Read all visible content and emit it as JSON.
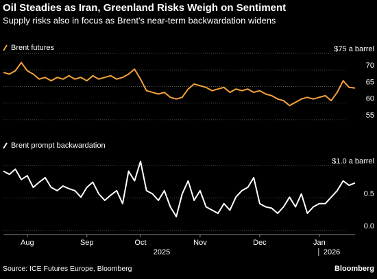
{
  "title": "Oil Steadies as Iran, Greenland Risks Weigh on Sentiment",
  "subtitle": "Supply risks also in focus as Brent's near-term backwardation widens",
  "source": "Source: ICE Futures Europe, Bloomberg",
  "brand": "Bloomberg",
  "chart_data": [
    {
      "type": "line",
      "series": [
        {
          "name": "Brent futures",
          "color": "#f5a33a",
          "values": [
            68,
            67.5,
            68.5,
            71,
            68.5,
            67.5,
            66,
            66.5,
            65.5,
            66.5,
            66,
            67,
            66,
            66.5,
            65.5,
            67,
            66,
            66.5,
            67,
            66,
            66.5,
            67.5,
            69,
            66,
            62.5,
            62,
            61.5,
            62,
            60.5,
            60,
            60.5,
            63,
            64.5,
            64,
            63.5,
            62.5,
            63,
            63.5,
            62,
            63,
            62.5,
            63,
            62,
            62.5,
            61.5,
            61,
            60,
            59.5,
            58,
            59,
            60,
            60.5,
            60,
            60.5,
            61,
            59.5,
            62,
            65.5,
            63.5,
            63.3
          ]
        }
      ],
      "ylim": [
        55,
        75
      ],
      "yticks": [
        55,
        60,
        65,
        70,
        {
          "value": 75,
          "label": "$75 a barrel"
        }
      ],
      "grid": true
    },
    {
      "type": "line",
      "series": [
        {
          "name": "Brent prompt backwardation",
          "color": "#ffffff",
          "values": [
            0.85,
            0.8,
            0.88,
            0.72,
            0.78,
            0.6,
            0.68,
            0.75,
            0.6,
            0.55,
            0.62,
            0.58,
            0.55,
            0.45,
            0.6,
            0.68,
            0.5,
            0.4,
            0.48,
            0.55,
            0.35,
            0.85,
            0.7,
            1.0,
            0.55,
            0.5,
            0.4,
            0.55,
            0.3,
            0.15,
            0.5,
            0.7,
            0.4,
            0.55,
            0.3,
            0.25,
            0.2,
            0.35,
            0.25,
            0.45,
            0.55,
            0.6,
            0.75,
            0.35,
            0.3,
            0.28,
            0.2,
            0.3,
            0.45,
            0.3,
            0.5,
            0.2,
            0.3,
            0.35,
            0.35,
            0.45,
            0.55,
            0.7,
            0.63,
            0.67
          ]
        }
      ],
      "categories": [
        null,
        null,
        null,
        null,
        "Aug",
        null,
        null,
        null,
        null,
        null,
        null,
        null,
        null,
        null,
        "Sep",
        null,
        null,
        null,
        null,
        null,
        null,
        null,
        null,
        "Oct",
        null,
        null,
        null,
        null,
        null,
        null,
        null,
        null,
        null,
        "Nov",
        null,
        null,
        null,
        null,
        null,
        null,
        null,
        null,
        null,
        "Dec",
        null,
        null,
        null,
        null,
        null,
        null,
        null,
        null,
        null,
        "Jan",
        null,
        null,
        null,
        null,
        null,
        null
      ],
      "years": [
        "2025",
        "2026"
      ],
      "ylim": [
        0,
        1
      ],
      "yticks": [
        {
          "value": 0,
          "label": "0.0"
        },
        0.5,
        {
          "value": 1,
          "label": "$1.0 a barrel"
        }
      ],
      "grid": true
    }
  ]
}
